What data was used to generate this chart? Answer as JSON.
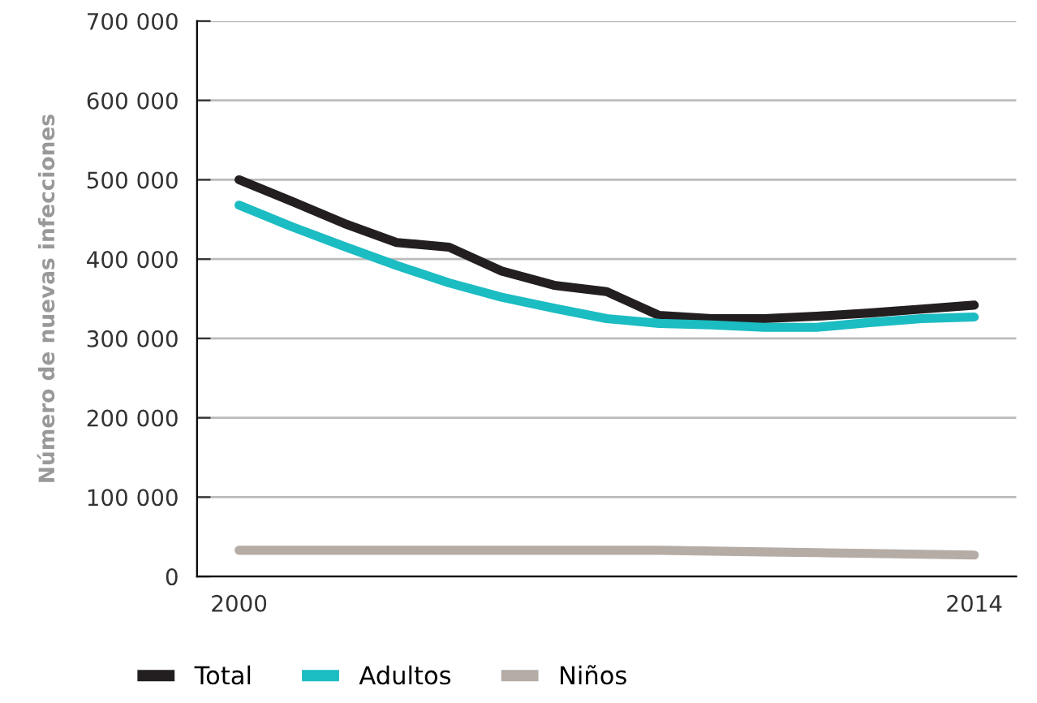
{
  "chart_data": {
    "type": "line",
    "ylabel": "Número de nuevas infecciones",
    "categories": [
      "2000",
      null,
      null,
      null,
      null,
      null,
      null,
      null,
      null,
      null,
      null,
      null,
      null,
      null,
      "2014"
    ],
    "series": [
      {
        "name": "Total",
        "color": "#231f20",
        "values": [
          500000,
          473000,
          445000,
          421000,
          415000,
          385000,
          367000,
          359000,
          329000,
          325000,
          325000,
          328000,
          332000,
          337000,
          342000
        ]
      },
      {
        "name": "Adultos",
        "color": "#1bbcc2",
        "values": [
          468000,
          441000,
          416000,
          392000,
          370000,
          352000,
          338000,
          325000,
          319000,
          317000,
          314000,
          314000,
          320000,
          325000,
          327000
        ]
      },
      {
        "name": "Niños",
        "color": "#b5aca6",
        "values": [
          33000,
          33000,
          33000,
          33000,
          33000,
          33000,
          33000,
          33000,
          33000,
          32000,
          31000,
          30000,
          29000,
          28000,
          27000
        ]
      }
    ],
    "ylim": [
      0,
      700000
    ],
    "yticks": [
      {
        "value": 0,
        "label": "0"
      },
      {
        "value": 100000,
        "label": "100 000"
      },
      {
        "value": 200000,
        "label": "200 000"
      },
      {
        "value": 300000,
        "label": "300 000"
      },
      {
        "value": 400000,
        "label": "400 000"
      },
      {
        "value": 500000,
        "label": "500 000"
      },
      {
        "value": 600000,
        "label": "600 000"
      },
      {
        "value": 700000,
        "label": "700 000"
      }
    ],
    "grid": "y",
    "legend": "bottom",
    "marker": "none",
    "line_style": "solid"
  }
}
